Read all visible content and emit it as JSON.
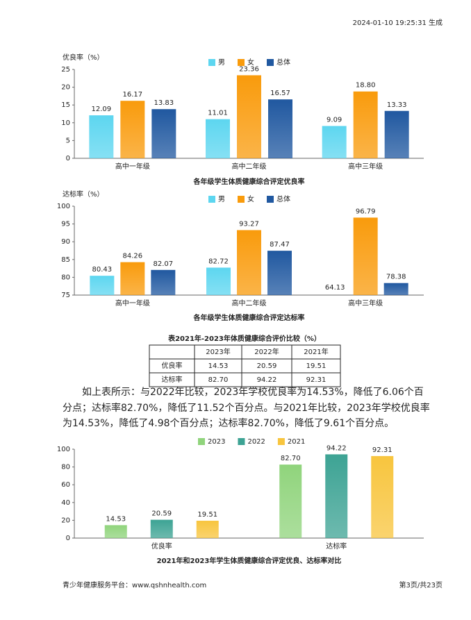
{
  "header": {
    "timestamp": "2024-01-10 19:25:31 生成"
  },
  "chart_data": [
    {
      "type": "bar",
      "ylabel": "优良率（%）",
      "title": "各年级学生体质健康综合评定优良率",
      "categories": [
        "高中一年级",
        "高中二年级",
        "高中三年级"
      ],
      "series": [
        {
          "name": "男",
          "color": "#5dd6f0",
          "values": [
            12.09,
            11.01,
            9.09
          ],
          "value_labels": [
            "12.09",
            "11.01",
            "9.09"
          ]
        },
        {
          "name": "女",
          "color": "#f99b0c",
          "values": [
            16.17,
            23.36,
            18.8
          ],
          "value_labels": [
            "16.17",
            "23.36",
            "18.80"
          ]
        },
        {
          "name": "总体",
          "color": "#2058a0",
          "values": [
            13.83,
            16.57,
            13.33
          ],
          "value_labels": [
            "13.83",
            "16.57",
            "13.33"
          ]
        }
      ],
      "ylim": [
        0,
        25
      ],
      "yticks": [
        0,
        5,
        10,
        15,
        20,
        25
      ],
      "legend": "top"
    },
    {
      "type": "bar",
      "ylabel": "达标率（%）",
      "title": "各年级学生体质健康综合评定达标率",
      "categories": [
        "高中一年级",
        "高中二年级",
        "高中三年级"
      ],
      "series": [
        {
          "name": "男",
          "color": "#5dd6f0",
          "values": [
            80.43,
            82.72,
            64.13
          ],
          "value_labels": [
            "80.43",
            "82.72",
            "64.13"
          ]
        },
        {
          "name": "女",
          "color": "#f99b0c",
          "values": [
            84.26,
            93.27,
            96.79
          ],
          "value_labels": [
            "84.26",
            "93.27",
            "96.79"
          ]
        },
        {
          "name": "总体",
          "color": "#2058a0",
          "values": [
            82.07,
            87.47,
            78.38
          ],
          "value_labels": [
            "82.07",
            "87.47",
            "78.38"
          ]
        }
      ],
      "ylim": [
        75,
        100
      ],
      "yticks": [
        75,
        80,
        85,
        90,
        95,
        100
      ],
      "legend": "top"
    },
    {
      "type": "bar",
      "title": "2021年和2023年学生体质健康综合评定优良、达标率对比",
      "categories": [
        "优良率",
        "达标率"
      ],
      "series": [
        {
          "name": "2023",
          "color": "#90d47c",
          "values": [
            14.53,
            82.7
          ],
          "value_labels": [
            "14.53",
            "82.70"
          ]
        },
        {
          "name": "2022",
          "color": "#3da394",
          "values": [
            20.59,
            94.22
          ],
          "value_labels": [
            "20.59",
            "94.22"
          ]
        },
        {
          "name": "2021",
          "color": "#f8c53e",
          "values": [
            19.51,
            92.31
          ],
          "value_labels": [
            "19.51",
            "92.31"
          ]
        }
      ],
      "ylim": [
        0,
        100
      ],
      "yticks": [
        0,
        20,
        40,
        60,
        80,
        100
      ],
      "legend": "top"
    }
  ],
  "table": {
    "title": "表2021年-2023年体质健康综合评价比较（%）",
    "columns": [
      "2023年",
      "2022年",
      "2021年"
    ],
    "rows": [
      {
        "label": "优良率",
        "cells": [
          "14.53",
          "20.59",
          "19.51"
        ]
      },
      {
        "label": "达标率",
        "cells": [
          "82.70",
          "94.22",
          "92.31"
        ]
      }
    ]
  },
  "paragraph": "如上表所示：与2022年比较，2023年学校优良率为14.53%，降低了6.06个百分点；达标率82.70%，降低了11.52个百分点。与2021年比较，2023年学校优良率为14.53%，降低了4.98个百分点；达标率82.70%，降低了9.61个百分点。",
  "footer": {
    "site": "青少年健康服务平台：www.qshnhealth.com",
    "page": "第3页/共23页"
  }
}
